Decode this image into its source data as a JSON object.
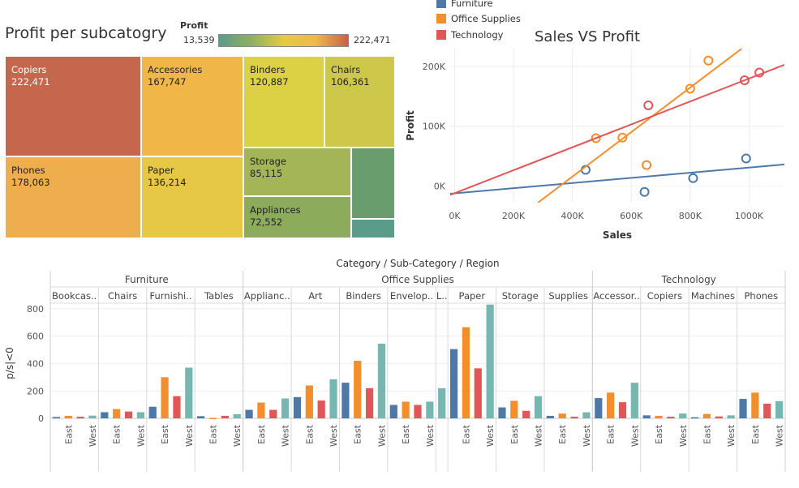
{
  "treemap": {
    "title": "Profit per subcatogry",
    "legend_title": "Profit",
    "legend_min": "13,539",
    "legend_max": "222,471",
    "color_scale": [
      "#5a9b8a",
      "#8fb060",
      "#e3cc41",
      "#f0b84a",
      "#c4634a"
    ],
    "cells": [
      {
        "name": "Copiers",
        "value": "222,471",
        "color": "#c4674d"
      },
      {
        "name": "Accessories",
        "value": "167,747",
        "color": "#f0b648"
      },
      {
        "name": "Binders",
        "value": "120,887",
        "color": "#dcd045"
      },
      {
        "name": "Chairs",
        "value": "106,361",
        "color": "#cdc84a"
      },
      {
        "name": "Phones",
        "value": "178,063",
        "color": "#eeae4d"
      },
      {
        "name": "Paper",
        "value": "136,214",
        "color": "#e7c846"
      },
      {
        "name": "Storage",
        "value": "85,115",
        "color": "#a3b556"
      },
      {
        "name": "Appliances",
        "value": "72,552",
        "color": "#8cab5b"
      },
      {
        "name": "",
        "value": "",
        "color": "#6a9d6d"
      },
      {
        "name": "",
        "value": "",
        "color": "#5a9b8a"
      }
    ]
  },
  "scatter_legend": [
    {
      "label": "Furniture",
      "color": "#4e79a7"
    },
    {
      "label": "Office Supplies",
      "color": "#f28e2b"
    },
    {
      "label": "Technology",
      "color": "#e15759"
    }
  ],
  "chart_data": [
    {
      "type": "scatter",
      "title": "Sales VS Profit",
      "xlabel": "Sales",
      "ylabel": "Profit",
      "xlim": [
        -15000,
        1120000
      ],
      "ylim": [
        -28000,
        230000
      ],
      "x_ticks": [
        "0K",
        "200K",
        "400K",
        "600K",
        "800K",
        "1000K"
      ],
      "y_ticks": [
        "0K",
        "100K",
        "200K"
      ],
      "series": [
        {
          "name": "Furniture",
          "color": "#4e79a7",
          "points": [
            [
              445000,
              27000
            ],
            [
              645000,
              -10000
            ],
            [
              810000,
              13000
            ],
            [
              990000,
              46000
            ]
          ],
          "trend": [
            [
              -15000,
              -13000
            ],
            [
              1120000,
              36000
            ]
          ]
        },
        {
          "name": "Office Supplies",
          "color": "#f28e2b",
          "points": [
            [
              480000,
              80000
            ],
            [
              570000,
              81000
            ],
            [
              652000,
              35000
            ],
            [
              800000,
              163000
            ],
            [
              862000,
              210000
            ]
          ],
          "trend": [
            [
              283000,
              -28000
            ],
            [
              975000,
              230000
            ]
          ]
        },
        {
          "name": "Technology",
          "color": "#e15759",
          "points": [
            [
              658000,
              135000
            ],
            [
              985000,
              177000
            ],
            [
              1035000,
              190000
            ]
          ],
          "trend": [
            [
              -15000,
              -15000
            ],
            [
              1120000,
              203000
            ]
          ]
        }
      ]
    },
    {
      "type": "bar",
      "title": "Category / Sub-Category / Region",
      "ylabel": "p/s|<0",
      "ylim": [
        -35,
        840
      ],
      "y_ticks": [
        "0",
        "200",
        "400",
        "600",
        "800"
      ],
      "region_colors": {
        "Central": "#4e79a7",
        "East": "#f28e2b",
        "South": "#e15759",
        "West": "#76b7b2"
      },
      "x_tick_labels": [
        "East",
        "West"
      ],
      "categories": [
        {
          "name": "Furniture",
          "subcategories": [
            {
              "label": "Bookcas..",
              "values": [
                10,
                18,
                12,
                20
              ]
            },
            {
              "label": "Chairs",
              "values": [
                45,
                68,
                50,
                45
              ]
            },
            {
              "label": "Furnishi..",
              "values": [
                85,
                300,
                162,
                370
              ]
            },
            {
              "label": "Tables",
              "values": [
                16,
                3,
                18,
                30
              ]
            }
          ]
        },
        {
          "name": "Office Supplies",
          "subcategories": [
            {
              "label": "Applianc..",
              "values": [
                62,
                115,
                62,
                145
              ]
            },
            {
              "label": "Art",
              "values": [
                155,
                240,
                130,
                285
              ]
            },
            {
              "label": "Binders",
              "values": [
                260,
                420,
                220,
                545
              ]
            },
            {
              "label": "Envelop..",
              "values": [
                98,
                122,
                98,
                122
              ]
            },
            {
              "label": "L..",
              "values": [
                220
              ]
            },
            {
              "label": "Paper",
              "values": [
                505,
                665,
                365,
                830
              ]
            },
            {
              "label": "Storage",
              "values": [
                80,
                128,
                55,
                162
              ]
            },
            {
              "label": "Supplies",
              "values": [
                18,
                35,
                12,
                44
              ]
            }
          ]
        },
        {
          "name": "Technology",
          "subcategories": [
            {
              "label": "Accessor..",
              "values": [
                148,
                188,
                118,
                260
              ]
            },
            {
              "label": "Copiers",
              "values": [
                22,
                18,
                12,
                35
              ]
            },
            {
              "label": "Machines",
              "values": [
                8,
                32,
                14,
                22
              ]
            },
            {
              "label": "Phones",
              "values": [
                142,
                188,
                107,
                125
              ]
            }
          ]
        }
      ]
    }
  ]
}
